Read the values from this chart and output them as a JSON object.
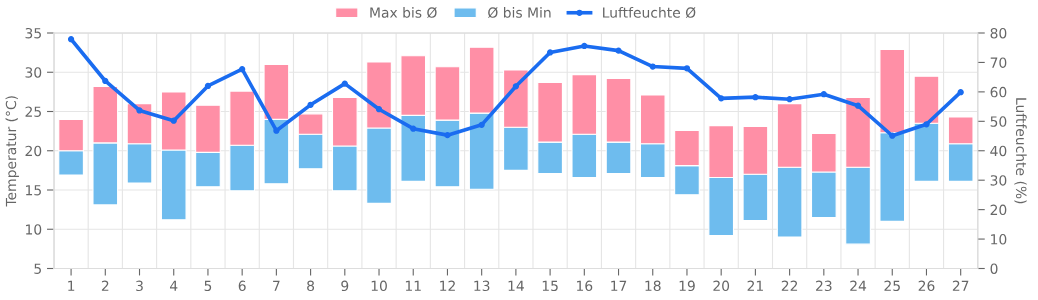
{
  "chart_data": {
    "type": "bar",
    "ylabel": "Temperatur (°C)",
    "y2label": "Luftfeuchte (%)",
    "categories": [
      "1",
      "2",
      "3",
      "4",
      "5",
      "6",
      "7",
      "8",
      "9",
      "10",
      "11",
      "12",
      "13",
      "14",
      "15",
      "16",
      "17",
      "18",
      "19",
      "20",
      "21",
      "22",
      "23",
      "24",
      "25",
      "26",
      "27"
    ],
    "series": [
      {
        "name": "Ø bis Min",
        "color": "#6ebcee",
        "base": [
          16.9,
          13.1,
          15.9,
          11.2,
          15.4,
          14.9,
          15.8,
          17.7,
          14.9,
          13.3,
          16.1,
          15.4,
          15.1,
          17.5,
          17.1,
          16.6,
          17.1,
          16.6,
          14.4,
          9.2,
          11.1,
          9.0,
          11.5,
          8.1,
          11.0,
          16.1,
          16.1
        ],
        "values": [
          3.1,
          7.9,
          5.0,
          8.9,
          4.4,
          5.8,
          8.2,
          4.4,
          5.7,
          9.6,
          8.4,
          8.5,
          9.7,
          5.5,
          4.0,
          5.5,
          4.0,
          4.3,
          3.7,
          7.4,
          5.9,
          8.9,
          5.8,
          9.8,
          11.3,
          7.4,
          4.8
        ]
      },
      {
        "name": "Max bis Ø",
        "color": "#ff8fa6",
        "base": [
          20.0,
          21.0,
          20.9,
          20.1,
          19.8,
          20.7,
          24.0,
          22.1,
          20.6,
          22.9,
          24.5,
          23.9,
          24.8,
          23.0,
          21.1,
          22.1,
          21.1,
          20.9,
          18.1,
          16.6,
          17.0,
          17.9,
          17.3,
          17.9,
          22.3,
          23.5,
          20.9
        ],
        "values": [
          4.0,
          7.2,
          5.1,
          7.4,
          6.0,
          6.9,
          7.0,
          2.6,
          6.2,
          8.4,
          7.6,
          6.8,
          8.4,
          7.3,
          7.6,
          7.6,
          8.1,
          6.2,
          4.5,
          6.6,
          6.1,
          8.1,
          4.9,
          8.9,
          10.6,
          6.0,
          3.4
        ]
      },
      {
        "name": "Luftfeuchte Ø",
        "type": "line",
        "axis": "y2",
        "color": "#1a6cf0",
        "marker": "circle",
        "line_style": "solid",
        "values": [
          77.9,
          63.7,
          53.7,
          50.2,
          62.0,
          67.7,
          46.8,
          55.6,
          62.8,
          54.1,
          47.5,
          45.3,
          48.8,
          61.9,
          73.4,
          75.6,
          74.0,
          68.6,
          68.0,
          57.8,
          58.2,
          57.5,
          59.2,
          55.3,
          45.1,
          49.0,
          59.9
        ]
      }
    ],
    "ylim": [
      5,
      35
    ],
    "yticks": [
      5,
      10,
      15,
      20,
      25,
      30,
      35
    ],
    "y2lim": [
      0,
      80
    ],
    "y2ticks": [
      0,
      10,
      20,
      30,
      40,
      50,
      60,
      70,
      80
    ],
    "grid": true,
    "legend": "top"
  }
}
